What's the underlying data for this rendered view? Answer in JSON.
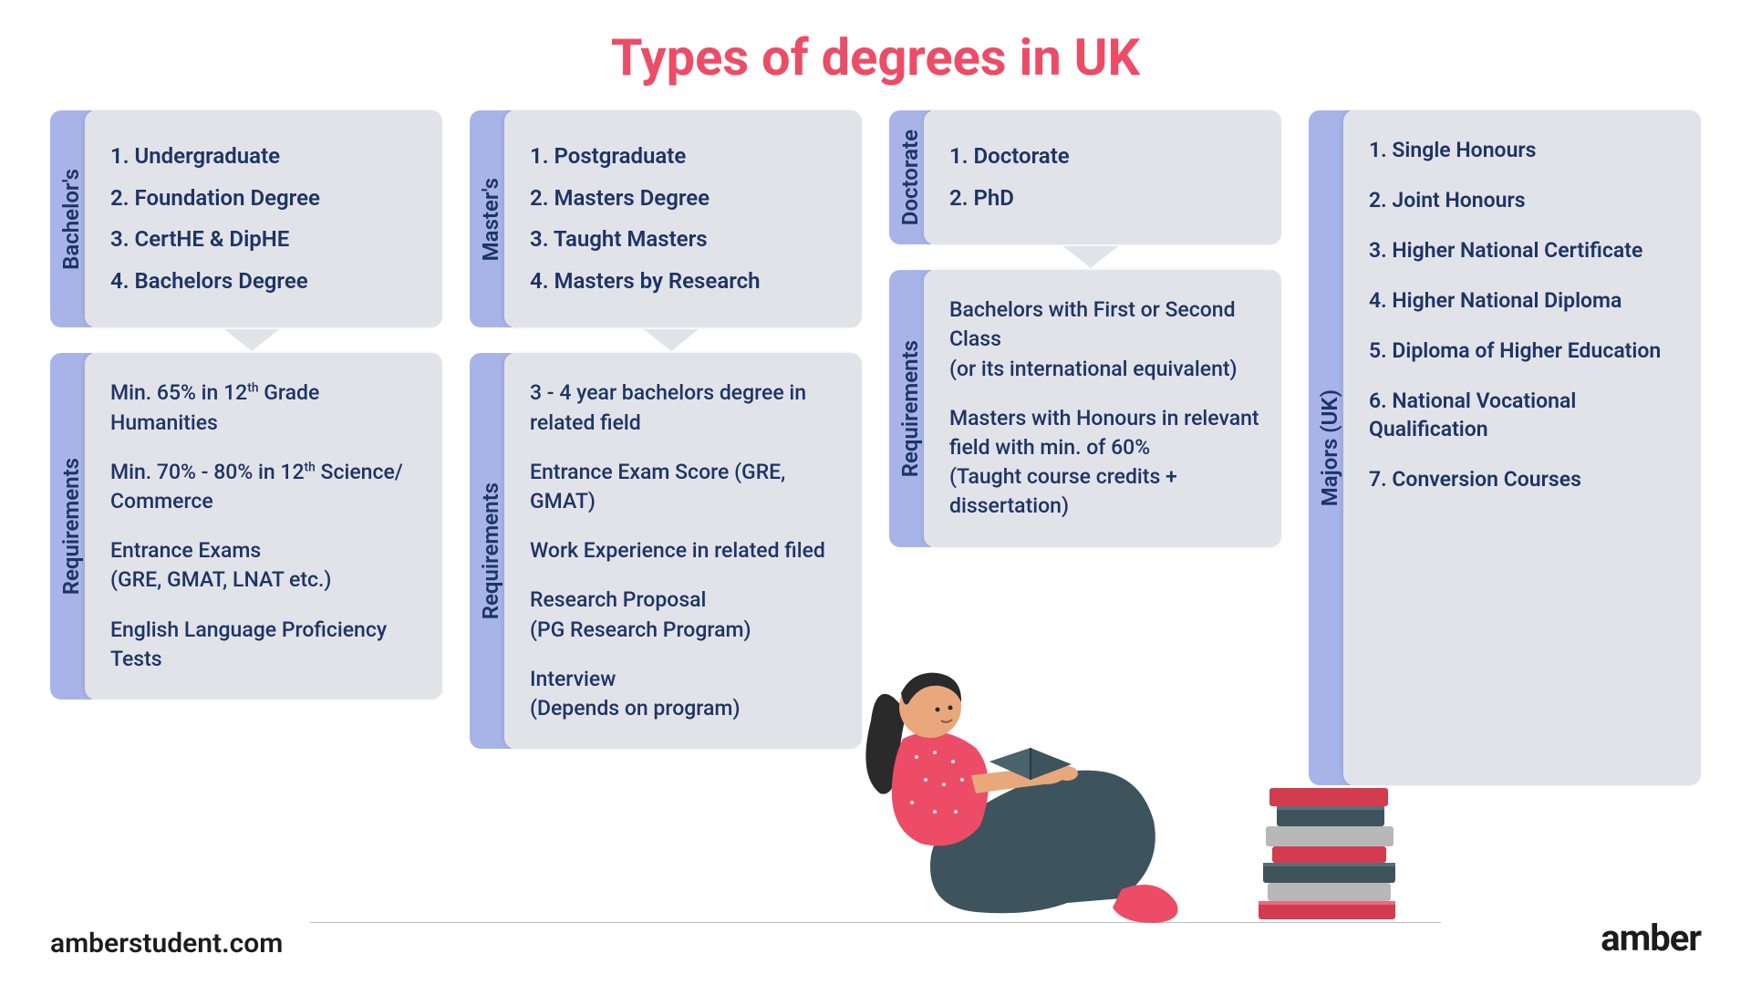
{
  "title": "Types of degrees in UK",
  "colors": {
    "title": "#ED4C67",
    "tab_bg": "#A8B4E8",
    "panel_bg": "#E2E3E9",
    "text": "#1D3464",
    "background": "#ffffff",
    "footer_text": "#1c1c1c",
    "illustration_shirt": "#ED4C67",
    "illustration_pants": "#3D545C",
    "illustration_hair": "#2A2A2A",
    "illustration_skin": "#E8A87C",
    "illustration_sock": "#ED4C67",
    "book_red": "#D33C4F",
    "book_dark": "#3D545C",
    "book_grey": "#B8B8B8"
  },
  "typography": {
    "title_fontsize": 56,
    "tab_fontsize": 24,
    "panel_fontsize": 24,
    "req_fontsize": 23,
    "footer_fontsize": 30,
    "brand_fontsize": 40
  },
  "columns": [
    {
      "name": "bachelors",
      "tab": "Bachelor's",
      "items": [
        "1.  Undergraduate",
        "2. Foundation Degree",
        "3. CertHE & DipHE",
        "4. Bachelors Degree"
      ],
      "req_tab": "Requirements",
      "requirements": [
        "Min. 65% in 12<sup>th</sup> Grade Humanities",
        "Min. 70% - 80% in 12<sup>th</sup> Science/ Commerce",
        "Entrance Exams<br>(GRE, GMAT, LNAT etc.)",
        "English Language Proficiency Tests"
      ]
    },
    {
      "name": "masters",
      "tab": "Master's",
      "items": [
        "1.  Postgraduate",
        "2. Masters Degree",
        "3. Taught Masters",
        "4. Masters by Research"
      ],
      "req_tab": "Requirements",
      "requirements": [
        "3 - 4 year bachelors degree in related field",
        "Entrance Exam Score (GRE, GMAT)",
        "Work Experience in related filed",
        "Research Proposal<br>(PG Research Program)",
        "Interview<br>(Depends on program)"
      ]
    },
    {
      "name": "doctorate",
      "tab": "Doctorate",
      "items": [
        "1.  Doctorate",
        "2. PhD"
      ],
      "req_tab": "Requirements",
      "requirements": [
        "Bachelors with First or Second Class<br>(or its international equivalent)",
        "Masters with Honours in relevant field with min. of 60%<br>(Taught course credits + dissertation)"
      ]
    },
    {
      "name": "majors",
      "tab": "Majors (UK)",
      "items": [
        "1.   Single Honours",
        "2.  Joint Honours",
        "3.  Higher National Certificate",
        "4.  Higher National Diploma",
        "5.  Diploma of Higher Education",
        "6.  National Vocational Qualification",
        "7.  Conversion Courses"
      ]
    }
  ],
  "footer": {
    "website": "amberstudent.com",
    "brand": "amber"
  }
}
